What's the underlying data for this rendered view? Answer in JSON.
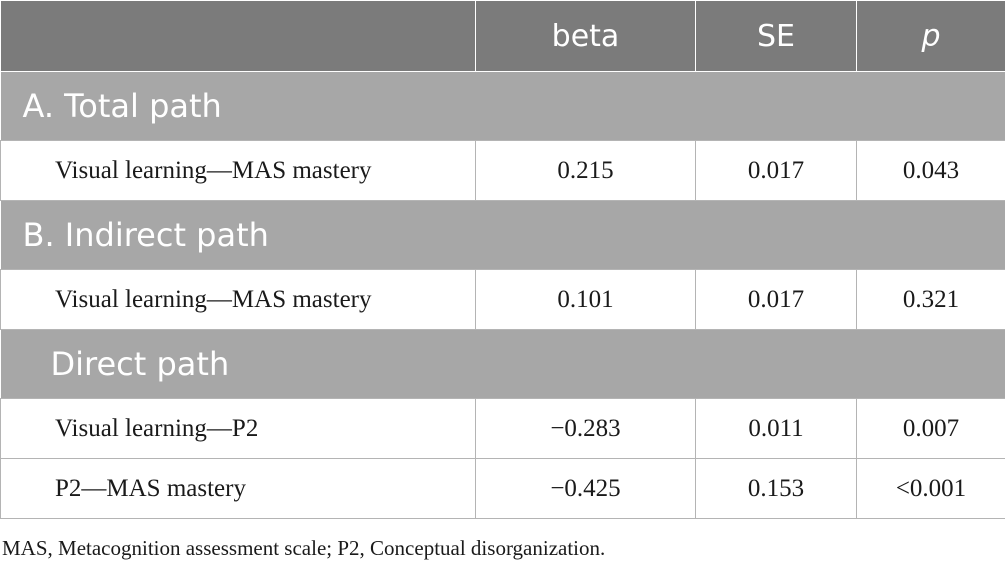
{
  "columns": [
    "",
    "beta",
    "SE",
    "p"
  ],
  "sections": [
    {
      "title": "A. Total path",
      "rows": [
        {
          "label": "Visual learning—MAS mastery",
          "beta": "0.215",
          "se": "0.017",
          "p": "0.043"
        }
      ]
    },
    {
      "title": "B. Indirect path",
      "rows": [
        {
          "label": "Visual learning—MAS mastery",
          "beta": "0.101",
          "se": "0.017",
          "p": "0.321"
        }
      ]
    },
    {
      "title": "Direct path",
      "rows": [
        {
          "label": "Visual learning—P2",
          "beta": "−0.283",
          "se": "0.011",
          "p": "0.007"
        },
        {
          "label": "P2—MAS mastery",
          "beta": "−0.425",
          "se": "0.153",
          "p": "<0.001"
        }
      ]
    }
  ],
  "footnote": "MAS, Metacognition assessment scale; P2, Conceptual disorganization."
}
